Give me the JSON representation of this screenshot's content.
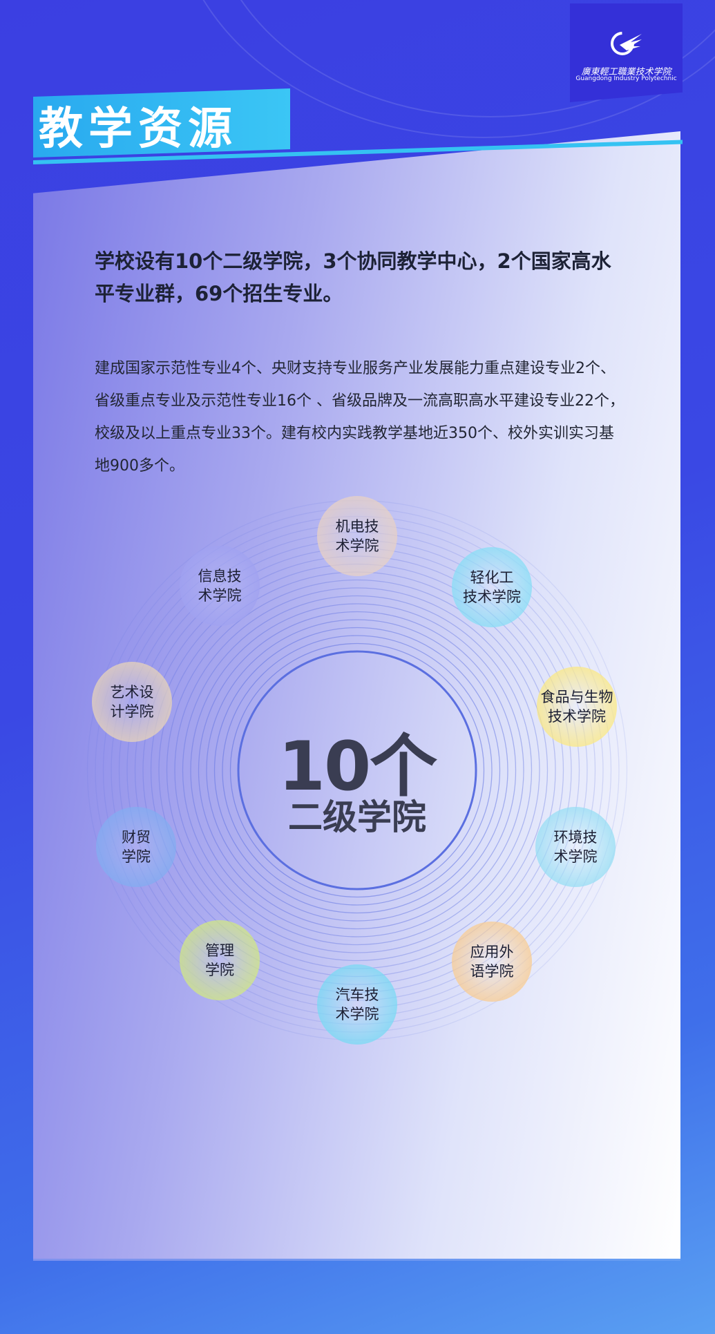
{
  "header": {
    "title": "教学资源"
  },
  "logo": {
    "name_cn": "廣東輕工職業技术学院",
    "name_en": "Guangdong Industry Polytechnic"
  },
  "lead": "学校设有10个二级学院，3个协同教学中心，2个国家高水平专业群，69个招生专业。",
  "body": "建成国家示范性专业4个、央财支持专业服务产业发展能力重点建设专业2个、省级重点专业及示范性专业16个 、省级品牌及一流高职高水平建设专业22个，校级及以上重点专业33个。建有校内实践教学基地近350个、校外实训实习基地900多个。",
  "center": {
    "number": "10个",
    "label": "二级学院"
  },
  "colleges": [
    {
      "label": "机电技\n术学院",
      "color": "#e8cfc0"
    },
    {
      "label": "轻化工\n技术学院",
      "color": "#7fdcf5"
    },
    {
      "label": "食品与生物\n技术学院",
      "color": "#fbe77a"
    },
    {
      "label": "环境技\n术学院",
      "color": "#8fdcf3"
    },
    {
      "label": "应用外\n语学院",
      "color": "#f9c98a"
    },
    {
      "label": "汽车技\n术学院",
      "color": "#6fd8f3"
    },
    {
      "label": "管理\n学院",
      "color": "#cfe77a"
    },
    {
      "label": "财贸\n学院",
      "color": "#7aa8f0"
    },
    {
      "label": "艺术设\n计学院",
      "color": "#e8d2b4"
    },
    {
      "label": "信息技\n术学院",
      "color": "#9a9cf0"
    }
  ]
}
